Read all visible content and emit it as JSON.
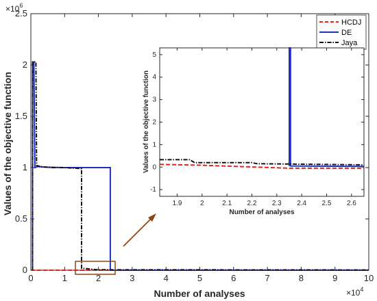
{
  "chart_data": [
    {
      "type": "line",
      "xlabel": "Number of analyses",
      "ylabel": "Values of the objective function",
      "x_multiplier": "×10",
      "x_exponent": "4",
      "y_multiplier": "×10",
      "y_exponent": "6",
      "xlim": [
        0,
        10
      ],
      "ylim": [
        0,
        2.5
      ],
      "x_ticks": [
        "0",
        "1",
        "2",
        "3",
        "4",
        "5",
        "6",
        "7",
        "8",
        "9",
        "10"
      ],
      "y_ticks": [
        "0",
        "0.5",
        "1",
        "1.5",
        "2",
        "2.5"
      ],
      "legend_position": "top-right",
      "series": [
        {
          "name": "HCDJ",
          "color": "#e0211d",
          "style": "dashed",
          "x": [
            0,
            10
          ],
          "y": [
            0,
            0
          ]
        },
        {
          "name": "DE",
          "color": "#1f2fbf",
          "style": "solid",
          "x": [
            0.05,
            0.05,
            0.09,
            0.12,
            0.2,
            0.4,
            1.0,
            2.35,
            2.35,
            10
          ],
          "y": [
            0,
            2.03,
            2.03,
            1.0,
            1.01,
            1.005,
            1.0,
            1.0,
            0.0,
            0.0
          ]
        },
        {
          "name": "Jaya",
          "color": "#111111",
          "style": "dashdot",
          "x": [
            0.05,
            0.05,
            0.15,
            0.17,
            0.3,
            0.6,
            1.0,
            1.5,
            1.5,
            1.97,
            10
          ],
          "y": [
            0,
            2.03,
            2.03,
            1.02,
            1.01,
            1.0,
            1.0,
            0.99,
            0.02,
            0.005,
            0.003
          ]
        }
      ],
      "annotation": "zoom box around x 1.4–2.5, arrow to inset"
    },
    {
      "type": "line",
      "xlabel": "Number of analyses",
      "ylabel": "Values of the objective function",
      "xlim": [
        1.83,
        2.65
      ],
      "ylim": [
        -1.3,
        5.3
      ],
      "x_ticks": [
        "1.9",
        "2",
        "2.1",
        "2.2",
        "2.3",
        "2.4",
        "2.5",
        "2.6"
      ],
      "y_ticks": [
        "-1",
        "0",
        "1",
        "2",
        "3",
        "4",
        "5"
      ],
      "series": [
        {
          "name": "HCDJ",
          "color": "#e0211d",
          "style": "dashed",
          "x": [
            1.83,
            2.0,
            2.35,
            2.65
          ],
          "y": [
            0.12,
            0.08,
            -0.05,
            -0.05
          ]
        },
        {
          "name": "DE",
          "color": "#1f2fbf",
          "style": "solid",
          "x": [
            2.35,
            2.35,
            2.355,
            2.355,
            2.65
          ],
          "y": [
            0.05,
            5.3,
            5.3,
            0.05,
            0.03
          ]
        },
        {
          "name": "Jaya",
          "color": "#111111",
          "style": "dashdot",
          "x": [
            1.83,
            1.95,
            1.97,
            2.2,
            2.22,
            2.65
          ],
          "y": [
            0.33,
            0.33,
            0.2,
            0.2,
            0.15,
            0.1
          ]
        }
      ]
    }
  ]
}
